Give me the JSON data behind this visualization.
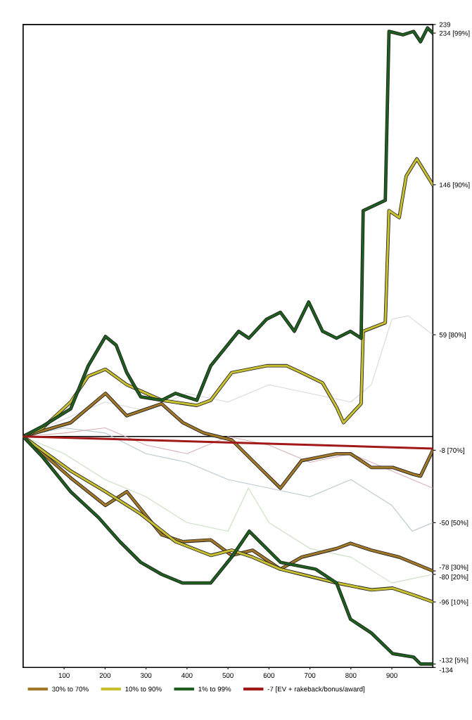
{
  "chart_data": {
    "type": "line",
    "xlim": [
      0,
      1000
    ],
    "xticks": [
      100,
      200,
      300,
      400,
      500,
      600,
      700,
      800,
      900
    ],
    "ylim": [
      -134,
      239
    ],
    "yticks": [
      239,
      {
        "value": 234,
        "label": "234 [99%]"
      },
      {
        "value": 146,
        "label": "146 [90%]"
      },
      {
        "value": 59,
        "label": "59 [80%]"
      },
      {
        "value": -8,
        "label": "-8 [70%]"
      },
      {
        "value": -50,
        "label": "-50 [50%]"
      },
      {
        "value": -78,
        "label": "-78 [30%]"
      },
      {
        "value": -80,
        "label": "-80 [20%]"
      },
      {
        "value": -96,
        "label": "-96 [10%]"
      },
      {
        "value": -132,
        "label": "-132 [5%]"
      },
      -134
    ],
    "grid": false,
    "legend": "bottom left",
    "marker": "none",
    "line_style": "solid",
    "ref_lines": [
      {
        "axis": "y",
        "value": 0,
        "color": "#000000"
      }
    ],
    "series": [
      {
        "color": "#d8d8d8",
        "x": [
          0,
          100,
          200,
          300,
          400,
          500,
          600,
          700,
          800,
          850,
          900,
          940,
          1000
        ],
        "values": [
          0,
          10,
          20,
          15,
          25,
          20,
          30,
          25,
          20,
          30,
          68,
          70,
          59
        ]
      },
      {
        "color": "#b8c8d0",
        "x": [
          0,
          100,
          200,
          300,
          400,
          500,
          600,
          700,
          800,
          900,
          950,
          1000
        ],
        "values": [
          0,
          5,
          2,
          -10,
          -15,
          -25,
          -30,
          -35,
          -25,
          -40,
          -55,
          -50
        ]
      },
      {
        "color": "#c8e0c0",
        "x": [
          0,
          100,
          200,
          300,
          400,
          500,
          550,
          600,
          700,
          800,
          900,
          1000
        ],
        "values": [
          0,
          -10,
          -25,
          -35,
          -50,
          -55,
          -30,
          -50,
          -65,
          -70,
          -85,
          -80
        ]
      },
      {
        "color": "#d8b0b8",
        "x": [
          0,
          100,
          200,
          300,
          400,
          500,
          600,
          700,
          800,
          900,
          1000
        ],
        "values": [
          0,
          2,
          5,
          -5,
          -10,
          0,
          -5,
          -15,
          -10,
          -20,
          -30
        ]
      },
      {
        "name": "30% to 70%",
        "color": "#a07828",
        "x": [
          0,
          116,
          201,
          253,
          338,
          390,
          441,
          509,
          560,
          628,
          680,
          765,
          799,
          850,
          902,
          953,
          970,
          1000
        ],
        "values": [
          0,
          8,
          25,
          12,
          19,
          8,
          2,
          -2,
          -14,
          -30,
          -14,
          -10,
          -10,
          -18,
          -18,
          -22,
          -23,
          -8
        ]
      },
      {
        "color": "#a07828",
        "x": [
          0,
          116,
          201,
          253,
          338,
          389,
          458,
          509,
          560,
          628,
          680,
          765,
          799,
          850,
          918,
          1000
        ],
        "values": [
          0,
          -24,
          -40,
          -32,
          -57,
          -61,
          -60,
          -69,
          -66,
          -77,
          -70,
          -65,
          -62,
          -66,
          -70,
          -78
        ]
      },
      {
        "name": "10% to 90%",
        "color": "#c8c030",
        "x": [
          0,
          48,
          116,
          159,
          201,
          253,
          338,
          424,
          458,
          509,
          594,
          643,
          680,
          731,
          765,
          782,
          825,
          830,
          884,
          893,
          918,
          935,
          961,
          1000
        ],
        "values": [
          0,
          5,
          20,
          35,
          39,
          30,
          21,
          18,
          21,
          37,
          41,
          41,
          37,
          31,
          17,
          8,
          19,
          61,
          66,
          131,
          127,
          151,
          161,
          146
        ]
      },
      {
        "color": "#c8c030",
        "x": [
          0,
          116,
          201,
          287,
          372,
          458,
          509,
          560,
          628,
          680,
          765,
          850,
          902,
          953,
          1000
        ],
        "values": [
          0,
          -20,
          -32,
          -45,
          -61,
          -69,
          -66,
          -70,
          -77,
          -80,
          -85,
          -89,
          -88,
          -92,
          -96
        ]
      },
      {
        "name": "1% to 99%",
        "color": "#1e5e1e",
        "x": [
          0,
          48,
          116,
          159,
          201,
          227,
          253,
          287,
          338,
          372,
          424,
          458,
          492,
          526,
          551,
          594,
          628,
          662,
          697,
          731,
          765,
          799,
          825,
          830,
          884,
          893,
          927,
          953,
          970,
          987,
          1000
        ],
        "values": [
          0,
          6,
          16,
          41,
          58,
          53,
          37,
          23,
          21,
          25,
          21,
          41,
          51,
          61,
          57,
          68,
          72,
          61,
          78,
          61,
          57,
          61,
          57,
          131,
          137,
          235,
          233,
          235,
          229,
          237,
          234
        ]
      },
      {
        "color": "#1e5e1e",
        "x": [
          0,
          48,
          116,
          184,
          236,
          287,
          338,
          389,
          458,
          509,
          552,
          628,
          714,
          765,
          799,
          850,
          902,
          953,
          970,
          1000
        ],
        "values": [
          0,
          -12,
          -32,
          -47,
          -61,
          -73,
          -80,
          -85,
          -85,
          -70,
          -55,
          -73,
          -77,
          -85,
          -106,
          -114,
          -126,
          -128,
          -132,
          -132
        ]
      },
      {
        "name": "-7 [EV + rakeback/bonus/award]",
        "color": "#a01818",
        "x": [
          0,
          1000
        ],
        "values": [
          0,
          -7
        ]
      }
    ]
  }
}
